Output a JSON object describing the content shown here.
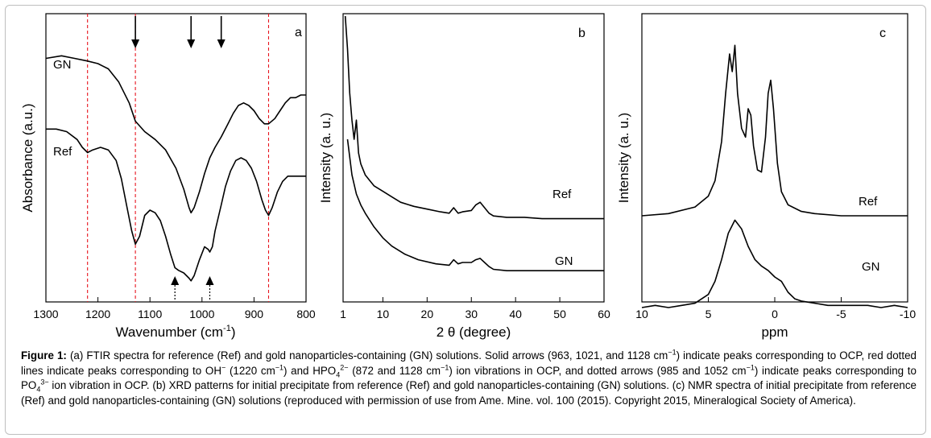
{
  "chart_data": [
    {
      "panel": "a",
      "type": "line",
      "xlabel": "Wavenumber (cm",
      "xlabel_sup": "-1",
      "xlabel_end": ")",
      "ylabel": "Absorbance (a.u.)",
      "xlim": [
        1300,
        800
      ],
      "x_ticks": [
        "1300",
        "1200",
        "1100",
        "1000",
        "900",
        "800"
      ],
      "series": [
        {
          "name": "GN",
          "x": [
            1300,
            1270,
            1245,
            1220,
            1200,
            1180,
            1160,
            1140,
            1128,
            1110,
            1090,
            1070,
            1050,
            1035,
            1025,
            1021,
            1015,
            1005,
            995,
            985,
            975,
            963,
            950,
            940,
            930,
            920,
            910,
            900,
            890,
            880,
            872,
            860,
            850,
            840,
            830,
            820,
            810,
            800
          ],
          "y": [
            0.9,
            0.91,
            0.9,
            0.89,
            0.88,
            0.86,
            0.81,
            0.73,
            0.66,
            0.62,
            0.59,
            0.55,
            0.48,
            0.4,
            0.33,
            0.31,
            0.33,
            0.39,
            0.46,
            0.52,
            0.56,
            0.6,
            0.65,
            0.69,
            0.72,
            0.73,
            0.72,
            0.7,
            0.67,
            0.65,
            0.65,
            0.67,
            0.7,
            0.73,
            0.75,
            0.75,
            0.76,
            0.76
          ]
        },
        {
          "name": "Ref",
          "x": [
            1300,
            1280,
            1260,
            1240,
            1230,
            1220,
            1210,
            1195,
            1180,
            1165,
            1155,
            1145,
            1135,
            1128,
            1120,
            1110,
            1100,
            1090,
            1080,
            1070,
            1060,
            1052,
            1045,
            1035,
            1025,
            1021,
            1015,
            1005,
            995,
            988,
            985,
            980,
            975,
            963,
            955,
            945,
            935,
            925,
            915,
            905,
            895,
            885,
            878,
            872,
            865,
            855,
            845,
            835,
            825,
            815,
            805,
            800
          ],
          "y": [
            0.63,
            0.63,
            0.62,
            0.59,
            0.56,
            0.54,
            0.55,
            0.56,
            0.55,
            0.51,
            0.44,
            0.34,
            0.24,
            0.19,
            0.22,
            0.3,
            0.32,
            0.31,
            0.28,
            0.22,
            0.15,
            0.1,
            0.09,
            0.08,
            0.06,
            0.05,
            0.07,
            0.13,
            0.18,
            0.17,
            0.16,
            0.18,
            0.24,
            0.34,
            0.41,
            0.47,
            0.51,
            0.52,
            0.51,
            0.48,
            0.43,
            0.36,
            0.32,
            0.3,
            0.33,
            0.39,
            0.43,
            0.45,
            0.45,
            0.45,
            0.45,
            0.45
          ]
        }
      ],
      "red_dotted_lines": [
        1220,
        1128,
        872
      ],
      "solid_arrows": [
        1128,
        1021,
        963
      ],
      "dotted_arrows": [
        1052,
        985
      ],
      "panel_letter": "a"
    },
    {
      "panel": "b",
      "type": "line",
      "xlabel": "2 θ (degree)",
      "ylabel": "Intensity (a. u.)",
      "xlim": [
        1,
        60
      ],
      "x_ticks": [
        "1",
        "10",
        "20",
        "30",
        "40",
        "50",
        "60"
      ],
      "x_tick_values": [
        1,
        10,
        20,
        30,
        40,
        50,
        60
      ],
      "series": [
        {
          "name": "Ref",
          "x": [
            1.5,
            2,
            2.5,
            3,
            3.5,
            4,
            4.5,
            5,
            6,
            7,
            8,
            10,
            12,
            14,
            17,
            20,
            23,
            25,
            26,
            27,
            28,
            30,
            31,
            32,
            33,
            34,
            35,
            38,
            42,
            46,
            50,
            55,
            60
          ],
          "y": [
            1.05,
            0.88,
            0.72,
            0.62,
            0.55,
            0.62,
            0.5,
            0.46,
            0.42,
            0.4,
            0.38,
            0.36,
            0.34,
            0.32,
            0.305,
            0.295,
            0.285,
            0.28,
            0.3,
            0.28,
            0.285,
            0.29,
            0.31,
            0.32,
            0.3,
            0.28,
            0.27,
            0.265,
            0.265,
            0.26,
            0.26,
            0.26,
            0.26
          ]
        },
        {
          "name": "GN",
          "x": [
            2,
            3,
            4,
            5,
            6,
            8,
            10,
            12,
            15,
            18,
            22,
            25,
            26,
            27,
            28,
            30,
            31,
            32,
            33,
            34,
            35,
            38,
            42,
            46,
            50,
            55,
            60
          ],
          "y": [
            0.55,
            0.42,
            0.35,
            0.31,
            0.28,
            0.23,
            0.19,
            0.16,
            0.13,
            0.11,
            0.095,
            0.09,
            0.11,
            0.095,
            0.1,
            0.1,
            0.11,
            0.115,
            0.1,
            0.085,
            0.075,
            0.07,
            0.07,
            0.07,
            0.07,
            0.07,
            0.07
          ]
        }
      ],
      "panel_letter": "b"
    },
    {
      "panel": "c",
      "type": "line",
      "xlabel": "ppm",
      "ylabel": "Intensity (a. u.)",
      "xlim": [
        10,
        -10
      ],
      "x_ticks": [
        "10",
        "5",
        "0",
        "-5",
        "-10"
      ],
      "x_tick_values": [
        10,
        5,
        0,
        -5,
        -10
      ],
      "series": [
        {
          "name": "Ref",
          "x": [
            10,
            8,
            6,
            5,
            4.5,
            4,
            3.7,
            3.4,
            3.2,
            3.0,
            2.8,
            2.5,
            2.2,
            2.0,
            1.8,
            1.6,
            1.3,
            1.0,
            0.7,
            0.5,
            0.3,
            0.1,
            -0.2,
            -0.5,
            -1,
            -2,
            -3,
            -5,
            -7,
            -10
          ],
          "y": [
            0.06,
            0.07,
            0.1,
            0.15,
            0.22,
            0.4,
            0.62,
            0.8,
            0.72,
            0.84,
            0.62,
            0.46,
            0.42,
            0.55,
            0.52,
            0.38,
            0.27,
            0.26,
            0.42,
            0.62,
            0.68,
            0.55,
            0.3,
            0.17,
            0.11,
            0.08,
            0.07,
            0.06,
            0.06,
            0.06
          ]
        },
        {
          "name": "GN",
          "x": [
            10,
            9,
            8,
            7,
            6,
            5,
            4.5,
            4,
            3.5,
            3.0,
            2.5,
            2.0,
            1.5,
            1.0,
            0.5,
            0,
            -0.5,
            -1,
            -1.5,
            -2,
            -3,
            -4,
            -5,
            -6,
            -7,
            -8,
            -9,
            -10
          ],
          "y": [
            -0.42,
            -0.41,
            -0.42,
            -0.41,
            -0.4,
            -0.36,
            -0.3,
            -0.2,
            -0.08,
            -0.02,
            -0.06,
            -0.14,
            -0.2,
            -0.23,
            -0.25,
            -0.28,
            -0.3,
            -0.35,
            -0.38,
            -0.39,
            -0.4,
            -0.41,
            -0.41,
            -0.41,
            -0.41,
            -0.42,
            -0.41,
            -0.42
          ]
        }
      ],
      "panel_letter": "c"
    }
  ],
  "caption": {
    "label": "Figure 1:",
    "line1": "(a) FTIR spectra for reference (Ref) and gold nanoparticles-containing (GN) solutions. Solid arrows (963, 1021, and 1128 cm",
    "line1_end": ") indicate peaks corresponding",
    "line2a": "to OCP, red dotted lines indicate peaks corresponding to OH",
    "line2b": " (1220 cm",
    "line2c": ") and HPO",
    "line2d": " (872 and 1128 cm",
    "line2e": ") ion vibrations in OCP, and dotted arrows (985 and 1052",
    "line3a": "cm",
    "line3b": ") indicate peaks corresponding to PO",
    "line3c": " ion vibration in OCP. (b) XRD patterns for initial precipitate from reference (Ref) and gold nanoparticles-containing (GN)",
    "line4": "solutions. (c) NMR spectra of initial precipitate from reference (Ref) and gold nanoparticles-containing (GN) solutions (reproduced with permission of use from Ame.",
    "line5": "Mine. vol. 100 (2015). Copyright 2015, Mineralogical Society of America).",
    "sup_minus1": "−1",
    "sup_minus": "−",
    "sub_4": "4",
    "sup_2minus": "2−",
    "sup_3minus": "3−"
  },
  "colors": {
    "line": "#000000",
    "red_dotted": "#e8141e",
    "frame": "#bfbfbf"
  }
}
